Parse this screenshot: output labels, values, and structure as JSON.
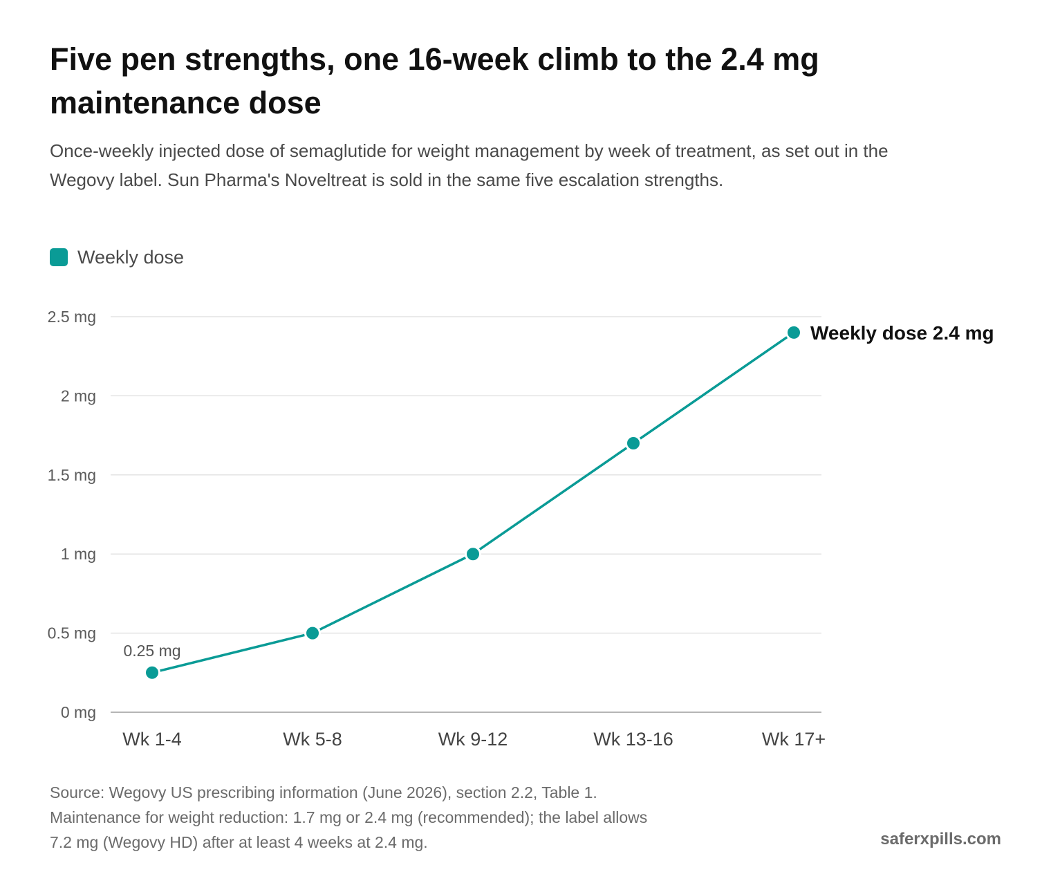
{
  "title": "Five pen strengths, one 16-week climb to the 2.4 mg maintenance dose",
  "subtitle": "Once-weekly injected dose of semaglutide for weight management by week of treatment, as set out in the Wegovy label. Sun Pharma's Noveltreat is sold in the same five escalation strengths.",
  "legend": {
    "label": "Weekly dose",
    "color": "#0a9b96"
  },
  "chart_data": {
    "type": "line",
    "categories": [
      "Wk 1-4",
      "Wk 5-8",
      "Wk 9-12",
      "Wk 13-16",
      "Wk 17+"
    ],
    "series": [
      {
        "name": "Weekly dose",
        "values": [
          0.25,
          0.5,
          1,
          1.7,
          2.4
        ],
        "color": "#0a9b96"
      }
    ],
    "y_ticks": [
      0,
      0.5,
      1,
      1.5,
      2,
      2.5
    ],
    "y_tick_labels": [
      "0 mg",
      "0.5 mg",
      "1 mg",
      "1.5 mg",
      "2 mg",
      "2.5 mg"
    ],
    "ylim": [
      0,
      2.5
    ],
    "grid": true,
    "annotations": [
      {
        "category": "Wk 1-4",
        "text": "0.25 mg"
      },
      {
        "category": "Wk 17+",
        "text": "Weekly dose 2.4 mg"
      }
    ]
  },
  "footnote_lines": [
    "Source: Wegovy US prescribing information (June 2026), section 2.2, Table 1.",
    "Maintenance for weight reduction: 1.7 mg or 2.4 mg (recommended); the label allows",
    "7.2 mg (Wegovy HD) after at least 4 weeks at 2.4 mg."
  ],
  "brand": "saferxpills.com"
}
